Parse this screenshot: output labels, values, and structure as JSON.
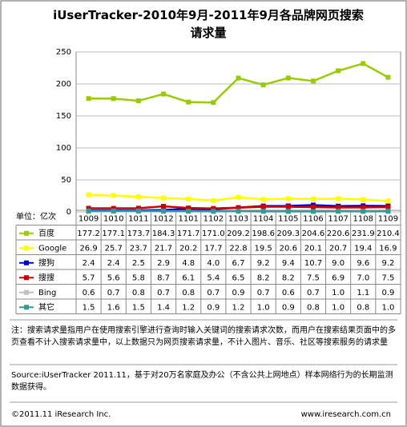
{
  "chart_data": {
    "type": "line",
    "title": "iUserTracker-2010年9月-2011年9月各品牌网页搜索请求量",
    "unit_label": "单位：亿次",
    "categories": [
      "1009",
      "1010",
      "1011",
      "1012",
      "1101",
      "1102",
      "1103",
      "1104",
      "1105",
      "1106",
      "1107",
      "1108",
      "1109"
    ],
    "ylim": [
      0,
      250
    ],
    "yticks": [
      0,
      50,
      100,
      150,
      200,
      250
    ],
    "grid": true,
    "series": [
      {
        "name": "百度",
        "color": "#99cc00",
        "values": [
          177.2,
          177.1,
          173.7,
          184.3,
          171.7,
          171.0,
          209.2,
          198.6,
          209.3,
          204.6,
          220.6,
          231.9,
          210.4
        ],
        "value_labels": [
          "177.2",
          "177.1",
          "173.7",
          "184.3",
          "171.7",
          "171.0",
          "209.2",
          "198.6",
          "209.3",
          "204.6",
          "220.6",
          "231.9",
          "210.4"
        ]
      },
      {
        "name": "Google",
        "color": "#ffff00",
        "values": [
          26.9,
          25.7,
          23.7,
          21.7,
          20.2,
          17.7,
          22.8,
          19.5,
          20.6,
          20.1,
          20.7,
          19.4,
          16.9
        ],
        "value_labels": [
          "26.9",
          "25.7",
          "23.7",
          "21.7",
          "20.2",
          "17.7",
          "22.8",
          "19.5",
          "20.6",
          "20.1",
          "20.7",
          "19.4",
          "16.9"
        ]
      },
      {
        "name": "搜狗",
        "color": "#0000cc",
        "values": [
          2.4,
          2.4,
          2.5,
          2.9,
          4.8,
          4.0,
          6.7,
          9.2,
          9.4,
          10.7,
          9.0,
          9.6,
          9.2
        ],
        "value_labels": [
          "2.4",
          "2.4",
          "2.5",
          "2.9",
          "4.8",
          "4.0",
          "6.7",
          "9.2",
          "9.4",
          "10.7",
          "9.0",
          "9.6",
          "9.2"
        ]
      },
      {
        "name": "搜搜",
        "color": "#cc0000",
        "values": [
          5.7,
          5.6,
          5.8,
          8.7,
          6.1,
          5.4,
          6.5,
          8.2,
          8.2,
          7.5,
          6.9,
          7.0,
          7.5
        ],
        "value_labels": [
          "5.7",
          "5.6",
          "5.8",
          "8.7",
          "6.1",
          "5.4",
          "6.5",
          "8.2",
          "8.2",
          "7.5",
          "6.9",
          "7.0",
          "7.5"
        ]
      },
      {
        "name": "Bing",
        "color": "#c0c0c0",
        "values": [
          0.6,
          0.7,
          0.8,
          0.7,
          0.8,
          0.7,
          0.9,
          0.7,
          0.6,
          0.7,
          1.0,
          1.1,
          0.9
        ],
        "value_labels": [
          "0.6",
          "0.7",
          "0.8",
          "0.7",
          "0.8",
          "0.7",
          "0.9",
          "0.7",
          "0.6",
          "0.7",
          "1.0",
          "1.1",
          "0.9"
        ]
      },
      {
        "name": "其它",
        "color": "#339999",
        "values": [
          1.5,
          1.6,
          1.5,
          1.4,
          1.2,
          0.9,
          1.2,
          1.0,
          0.9,
          0.8,
          1.0,
          0.8,
          1.0
        ],
        "value_labels": [
          "1.5",
          "1.6",
          "1.5",
          "1.4",
          "1.2",
          "0.9",
          "1.2",
          "1.0",
          "0.9",
          "0.8",
          "1.0",
          "0.8",
          "1.0"
        ]
      }
    ]
  },
  "notes": {
    "definition": "注：搜索请求量指用户在使用搜索引擎进行查询时输入关键词的搜索请求次数，而用户在搜索结果页面中的多页查看不计入搜索请求量中，以上数据只为网页搜索请求量，不计入图片、音乐、社区等搜索服务的请求量",
    "source": "Source:iUserTracker 2011.11，基于对20万名家庭及办公（不含公共上网地点）样本网络行为的长期监测数据获得。",
    "copyright": "©2011.11 iResearch Inc.",
    "website": "www.iresearch.com.cn"
  }
}
